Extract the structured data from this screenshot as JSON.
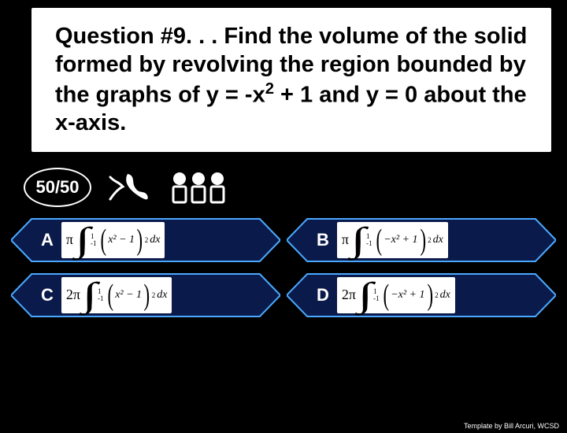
{
  "question": {
    "prefix": "Question #9. . . ",
    "body": "Find the volume of the solid formed by revolving the region bounded by the graphs of y = -x",
    "sup": "2",
    "suffix": " + 1 and y = 0 about the x-axis."
  },
  "lifelines": {
    "fifty": "50/50"
  },
  "hex_style": {
    "fill": "#0a1a4a",
    "stroke": "#4aa8ff",
    "stroke_width": 2
  },
  "answers": [
    {
      "label": "A",
      "pre": "π",
      "lower": "-1",
      "upper": "1",
      "expr": "x² − 1",
      "outer_sq": true
    },
    {
      "label": "B",
      "pre": "π",
      "lower": "-1",
      "upper": "1",
      "expr": "−x² + 1",
      "outer_sq": true
    },
    {
      "label": "C",
      "pre": "2π",
      "lower": "-1",
      "upper": "1",
      "expr": "x² − 1",
      "outer_sq": true
    },
    {
      "label": "D",
      "pre": "2π",
      "lower": "-1",
      "upper": "1",
      "expr": "−x² + 1",
      "outer_sq": true
    }
  ],
  "credit": "Template by Bill Arcuri, WCSD"
}
